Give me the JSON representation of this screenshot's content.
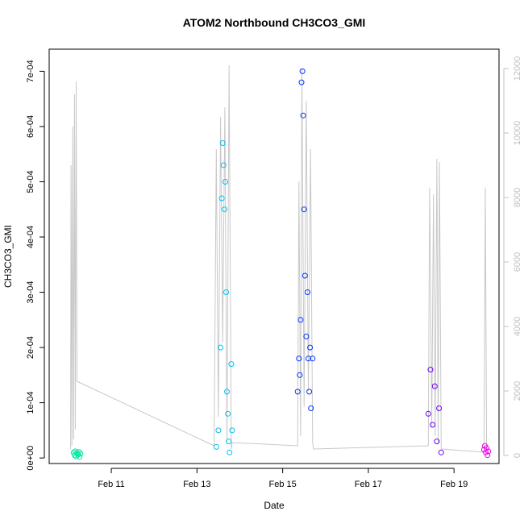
{
  "chart_data": {
    "type": "scatter",
    "title": "ATOM2 Northbound CH3CO3_GMI",
    "xlabel": "Date",
    "ylabel": "CH3CO3_GMI",
    "x_ticks": [
      "Feb 11",
      "Feb 13",
      "Feb 15",
      "Feb 17",
      "Feb 19"
    ],
    "x_tick_days": [
      11,
      13,
      15,
      17,
      19
    ],
    "xlim_days": [
      9.55,
      20.05
    ],
    "ylim": [
      -1e-05,
      0.00074
    ],
    "y_ticks": [
      "0e+00",
      "1e-04",
      "2e-04",
      "3e-04",
      "4e-04",
      "5e-04",
      "6e-04",
      "7e-04"
    ],
    "y_tick_values": [
      0,
      0.0001,
      0.0002,
      0.0003,
      0.0004,
      0.0005,
      0.0006,
      0.0007
    ],
    "y2_label": "",
    "y2lim": [
      -250,
      12600
    ],
    "y2_ticks": [
      "0",
      "2000",
      "4000",
      "6000",
      "8000",
      "10000",
      "12000"
    ],
    "y2_tick_values": [
      0,
      2000,
      4000,
      6000,
      8000,
      10000,
      12000
    ],
    "grid": false,
    "colors": {
      "flight1": "#00E5A0",
      "flight2": "#00C0F0",
      "flight3": "#0033FF",
      "flight4": "#6A00F5",
      "flight5": "#F200E8",
      "altitude": "#C8C8C8",
      "axis": "#000000",
      "axis2": "#C0C0C0"
    },
    "series": [
      {
        "values": [
          [
            10.12,
            1e-05
          ],
          [
            10.14,
            5e-06
          ],
          [
            10.16,
            1.2e-05
          ],
          [
            10.18,
            3e-06
          ],
          [
            10.2,
            9e-06
          ],
          [
            10.22,
            6e-06
          ],
          [
            10.24,
            1.1e-05
          ],
          [
            10.26,
            2e-06
          ],
          [
            10.28,
            8e-06
          ]
        ]
      },
      {
        "values": [
          [
            13.45,
            2e-05
          ],
          [
            13.5,
            5e-05
          ],
          [
            13.55,
            0.0002
          ],
          [
            13.58,
            0.00047
          ],
          [
            13.6,
            0.00057
          ],
          [
            13.62,
            0.00053
          ],
          [
            13.64,
            0.00045
          ],
          [
            13.66,
            0.0005
          ],
          [
            13.68,
            0.0003
          ],
          [
            13.7,
            0.00012
          ],
          [
            13.72,
            8e-05
          ],
          [
            13.74,
            3e-05
          ],
          [
            13.76,
            1e-05
          ],
          [
            13.8,
            0.00017
          ],
          [
            13.82,
            5e-05
          ]
        ]
      },
      {
        "values": [
          [
            15.35,
            0.00012
          ],
          [
            15.38,
            0.00018
          ],
          [
            15.4,
            0.00015
          ],
          [
            15.42,
            0.00025
          ],
          [
            15.44,
            0.00068
          ],
          [
            15.46,
            0.0007
          ],
          [
            15.48,
            0.00062
          ],
          [
            15.5,
            0.00045
          ],
          [
            15.52,
            0.00033
          ],
          [
            15.55,
            0.00022
          ],
          [
            15.58,
            0.0003
          ],
          [
            15.6,
            0.00018
          ],
          [
            15.62,
            0.00012
          ],
          [
            15.64,
            0.0002
          ],
          [
            15.66,
            9e-05
          ],
          [
            15.7,
            0.00018
          ]
        ]
      },
      {
        "values": [
          [
            18.4,
            8e-05
          ],
          [
            18.45,
            0.00016
          ],
          [
            18.5,
            6e-05
          ],
          [
            18.55,
            0.00013
          ],
          [
            18.6,
            3e-05
          ],
          [
            18.65,
            9e-05
          ],
          [
            18.7,
            1e-05
          ]
        ]
      },
      {
        "values": [
          [
            19.7,
            1.5e-05
          ],
          [
            19.72,
            2.2e-05
          ],
          [
            19.74,
            1e-05
          ],
          [
            19.76,
            1.8e-05
          ],
          [
            19.78,
            5e-06
          ],
          [
            19.8,
            1.2e-05
          ]
        ]
      }
    ],
    "altitude_trace": [
      [
        10.05,
        200
      ],
      [
        10.06,
        9000
      ],
      [
        10.08,
        300
      ],
      [
        10.1,
        10200
      ],
      [
        10.12,
        500
      ],
      [
        10.14,
        11200
      ],
      [
        10.16,
        800
      ],
      [
        10.18,
        11600
      ],
      [
        10.2,
        2300
      ],
      [
        13.4,
        300
      ],
      [
        13.45,
        9500
      ],
      [
        13.5,
        1200
      ],
      [
        13.55,
        10500
      ],
      [
        13.6,
        3500
      ],
      [
        13.65,
        10800
      ],
      [
        13.7,
        400
      ],
      [
        13.75,
        12100
      ],
      [
        13.8,
        200
      ],
      [
        13.82,
        400
      ],
      [
        15.35,
        300
      ],
      [
        15.38,
        8500
      ],
      [
        15.42,
        600
      ],
      [
        15.45,
        12000
      ],
      [
        15.5,
        1500
      ],
      [
        15.55,
        11000
      ],
      [
        15.6,
        2000
      ],
      [
        15.65,
        9500
      ],
      [
        15.7,
        400
      ],
      [
        15.72,
        200
      ],
      [
        18.4,
        300
      ],
      [
        18.43,
        8300
      ],
      [
        18.48,
        900
      ],
      [
        18.52,
        8100
      ],
      [
        18.56,
        600
      ],
      [
        18.6,
        9200
      ],
      [
        18.63,
        400
      ],
      [
        18.66,
        9100
      ],
      [
        18.7,
        200
      ],
      [
        19.7,
        100
      ],
      [
        19.73,
        8300
      ],
      [
        19.76,
        200
      ],
      [
        19.8,
        150
      ]
    ]
  }
}
